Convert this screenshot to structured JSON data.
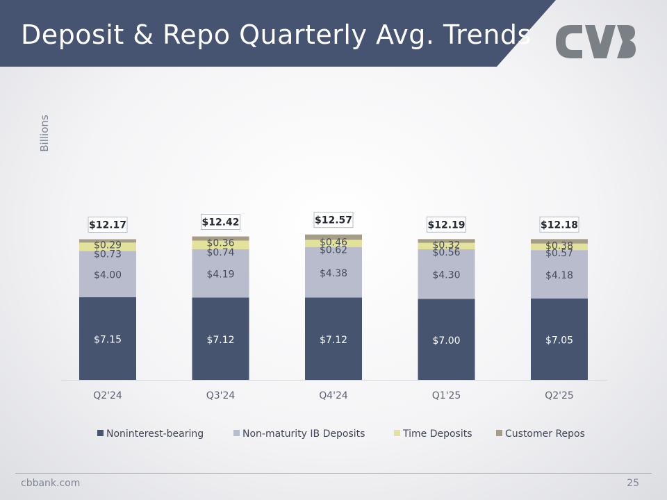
{
  "slide": {
    "title": "Deposit & Repo Quarterly Avg. Trends",
    "footer_url": "cbbank.com",
    "page_number": "25",
    "logo_icon": "cvb-logo-icon"
  },
  "colors": {
    "banner": "#465371",
    "logo": "#7b7f86",
    "noninterest": "#465470",
    "non_maturity": "#b8bccd",
    "time_deposits": "#e3e29b",
    "repos": "#a59d86"
  },
  "chart_data": {
    "type": "bar",
    "stacked": true,
    "ylabel": "Billions",
    "categories": [
      "Q2'24",
      "Q3'24",
      "Q4'24",
      "Q1'25",
      "Q2'25"
    ],
    "series": [
      {
        "name": "Noninterest-bearing",
        "values": [
          7.15,
          7.12,
          7.12,
          7.0,
          7.05
        ],
        "labels": [
          "$7.15",
          "$7.12",
          "$7.12",
          "$7.00",
          "$7.05"
        ]
      },
      {
        "name": "Non-maturity IB Deposits",
        "values": [
          4.0,
          4.19,
          4.38,
          4.3,
          4.18
        ],
        "labels": [
          "$4.00",
          "$4.19",
          "$4.38",
          "$4.30",
          "$4.18"
        ]
      },
      {
        "name": "Time Deposits",
        "values": [
          0.73,
          0.74,
          0.62,
          0.56,
          0.57
        ],
        "labels": [
          "$0.73",
          "$0.74",
          "$0.62",
          "$0.56",
          "$0.57"
        ]
      },
      {
        "name": "Customer Repos",
        "values": [
          0.29,
          0.36,
          0.46,
          0.32,
          0.38
        ],
        "labels": [
          "$0.29",
          "$0.36",
          "$0.46",
          "$0.32",
          "$0.38"
        ]
      }
    ],
    "totals": [
      12.17,
      12.42,
      12.57,
      12.19,
      12.18
    ],
    "total_labels": [
      "$12.17",
      "$12.42",
      "$12.57",
      "$12.19",
      "$12.18"
    ],
    "legend_position": "bottom",
    "grid": false
  }
}
